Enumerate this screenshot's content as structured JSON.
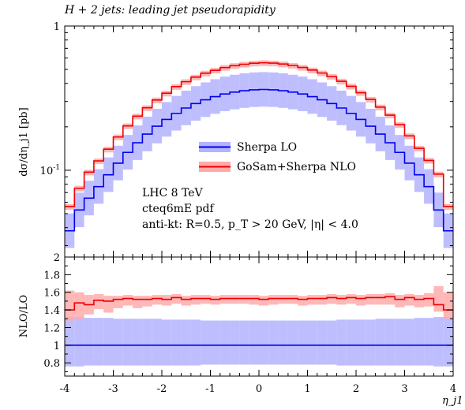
{
  "chart_data": [
    {
      "type": "step",
      "panel": "main",
      "title": "H + 2 jets: leading jet pseudorapidity",
      "ylabel": "dσ/dη_j1 [pb]",
      "xlabel": "",
      "xlim": [
        -4,
        4
      ],
      "ylim": [
        0.025,
        1
      ],
      "yscale": "log",
      "yticks": [
        {
          "value": 0.1,
          "label": "10^-1"
        },
        {
          "value": 1,
          "label": "1"
        }
      ],
      "x_edges": [
        -4.0,
        -3.8,
        -3.6,
        -3.4,
        -3.2,
        -3.0,
        -2.8,
        -2.6,
        -2.4,
        -2.2,
        -2.0,
        -1.8,
        -1.6,
        -1.4,
        -1.2,
        -1.0,
        -0.8,
        -0.6,
        -0.4,
        -0.2,
        0.0,
        0.2,
        0.4,
        0.6,
        0.8,
        1.0,
        1.2,
        1.4,
        1.6,
        1.8,
        2.0,
        2.2,
        2.4,
        2.6,
        2.8,
        3.0,
        3.2,
        3.4,
        3.6,
        3.8,
        4.0
      ],
      "series": [
        {
          "name": "Sherpa LO",
          "color": "#0000ee",
          "band_color": "#b3b3ff",
          "values": [
            0.038,
            0.053,
            0.064,
            0.077,
            0.093,
            0.112,
            0.133,
            0.155,
            0.178,
            0.202,
            0.225,
            0.248,
            0.27,
            0.29,
            0.308,
            0.324,
            0.338,
            0.348,
            0.356,
            0.361,
            0.363,
            0.361,
            0.356,
            0.348,
            0.338,
            0.324,
            0.308,
            0.29,
            0.27,
            0.248,
            0.225,
            0.202,
            0.178,
            0.155,
            0.133,
            0.112,
            0.093,
            0.077,
            0.053,
            0.038
          ],
          "band_low_factor": 0.76,
          "band_high_factor": 1.32
        },
        {
          "name": "GoSam+Sherpa NLO",
          "color": "#ee0000",
          "band_color": "#ffaaaa",
          "values": [
            0.056,
            0.075,
            0.097,
            0.116,
            0.14,
            0.17,
            0.203,
            0.237,
            0.271,
            0.307,
            0.342,
            0.38,
            0.411,
            0.442,
            0.471,
            0.493,
            0.515,
            0.531,
            0.543,
            0.552,
            0.556,
            0.553,
            0.545,
            0.532,
            0.516,
            0.495,
            0.472,
            0.446,
            0.414,
            0.382,
            0.345,
            0.31,
            0.274,
            0.241,
            0.207,
            0.173,
            0.142,
            0.117,
            0.094,
            0.056
          ],
          "band_low_factor": 0.95,
          "band_high_factor": 1.04
        }
      ],
      "legend": {
        "placement": "center-right",
        "entries": [
          "Sherpa LO",
          "GoSam+Sherpa NLO"
        ]
      },
      "annotations": [
        "LHC 8 TeV",
        "cteq6mE pdf",
        "anti-kt: R=0.5, p_T > 20 GeV, |η| < 4.0"
      ]
    },
    {
      "type": "step",
      "panel": "ratio",
      "ylabel": "NLO/LO",
      "xlabel": "η_j1",
      "xlim": [
        -4,
        4
      ],
      "ylim": [
        0.65,
        2.0
      ],
      "xticks": [
        -4,
        -3,
        -2,
        -1,
        0,
        1,
        2,
        3,
        4
      ],
      "yticks": [
        0.8,
        1.0,
        1.2,
        1.4,
        1.6,
        1.8,
        2.0
      ],
      "series": [
        {
          "name": "Sherpa LO",
          "color": "#0000ee",
          "band_color": "#b3b3ff",
          "values": [
            1,
            1,
            1,
            1,
            1,
            1,
            1,
            1,
            1,
            1,
            1,
            1,
            1,
            1,
            1,
            1,
            1,
            1,
            1,
            1,
            1,
            1,
            1,
            1,
            1,
            1,
            1,
            1,
            1,
            1,
            1,
            1,
            1,
            1,
            1,
            1,
            1,
            1,
            1,
            1
          ],
          "band_low": [
            0.76,
            0.76,
            0.77,
            0.77,
            0.77,
            0.77,
            0.77,
            0.77,
            0.77,
            0.77,
            0.77,
            0.77,
            0.77,
            0.77,
            0.78,
            0.78,
            0.78,
            0.78,
            0.78,
            0.78,
            0.78,
            0.78,
            0.78,
            0.78,
            0.78,
            0.78,
            0.78,
            0.78,
            0.77,
            0.77,
            0.77,
            0.77,
            0.77,
            0.77,
            0.77,
            0.77,
            0.77,
            0.77,
            0.76,
            0.76
          ],
          "band_high": [
            1.32,
            1.32,
            1.31,
            1.31,
            1.31,
            1.3,
            1.3,
            1.3,
            1.3,
            1.3,
            1.29,
            1.29,
            1.29,
            1.29,
            1.28,
            1.28,
            1.28,
            1.28,
            1.28,
            1.28,
            1.28,
            1.28,
            1.28,
            1.28,
            1.28,
            1.28,
            1.28,
            1.28,
            1.29,
            1.29,
            1.29,
            1.29,
            1.3,
            1.3,
            1.3,
            1.3,
            1.31,
            1.31,
            1.32,
            1.32
          ]
        },
        {
          "name": "GoSam+Sherpa NLO",
          "color": "#ee0000",
          "band_color": "#ffaaaa",
          "values": [
            1.4,
            1.48,
            1.46,
            1.51,
            1.5,
            1.52,
            1.53,
            1.52,
            1.52,
            1.53,
            1.52,
            1.54,
            1.52,
            1.53,
            1.53,
            1.52,
            1.53,
            1.53,
            1.53,
            1.53,
            1.52,
            1.53,
            1.53,
            1.53,
            1.52,
            1.53,
            1.53,
            1.54,
            1.53,
            1.54,
            1.53,
            1.54,
            1.54,
            1.55,
            1.52,
            1.54,
            1.52,
            1.53,
            1.46,
            1.4
          ],
          "band_low": [
            1.28,
            1.3,
            1.35,
            1.41,
            1.37,
            1.42,
            1.45,
            1.42,
            1.44,
            1.46,
            1.45,
            1.47,
            1.45,
            1.46,
            1.47,
            1.46,
            1.47,
            1.47,
            1.47,
            1.46,
            1.45,
            1.46,
            1.47,
            1.47,
            1.45,
            1.46,
            1.46,
            1.47,
            1.46,
            1.47,
            1.45,
            1.46,
            1.46,
            1.46,
            1.43,
            1.45,
            1.43,
            1.44,
            1.38,
            1.3
          ],
          "band_high": [
            1.62,
            1.6,
            1.57,
            1.58,
            1.56,
            1.56,
            1.57,
            1.56,
            1.56,
            1.57,
            1.57,
            1.58,
            1.56,
            1.57,
            1.57,
            1.56,
            1.57,
            1.57,
            1.57,
            1.57,
            1.56,
            1.57,
            1.57,
            1.57,
            1.56,
            1.57,
            1.57,
            1.58,
            1.57,
            1.58,
            1.57,
            1.58,
            1.58,
            1.59,
            1.57,
            1.58,
            1.57,
            1.59,
            1.67,
            1.6
          ]
        }
      ],
      "reference_line": 1.0
    }
  ]
}
